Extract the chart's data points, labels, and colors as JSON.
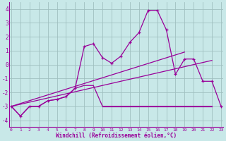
{
  "xlabel": "Windchill (Refroidissement éolien,°C)",
  "background_color": "#c8e8e8",
  "grid_color": "#a0c0c0",
  "line_color": "#990099",
  "x_values": [
    0,
    1,
    2,
    3,
    4,
    5,
    6,
    7,
    8,
    9,
    10,
    11,
    12,
    13,
    14,
    15,
    16,
    17,
    18,
    19,
    20,
    21,
    22,
    23
  ],
  "series1": [
    -3.0,
    -3.7,
    -3.0,
    -3.0,
    -2.6,
    -2.5,
    -2.3,
    -1.7,
    1.3,
    1.5,
    0.5,
    0.1,
    0.6,
    1.6,
    2.3,
    3.9,
    3.9,
    2.5,
    -0.7,
    0.4,
    0.4,
    -1.2,
    -1.2,
    -3.0
  ],
  "series2_x": [
    0,
    1,
    2,
    3,
    4,
    5,
    6,
    7,
    8,
    9,
    10,
    22
  ],
  "series2_y": [
    -3.0,
    -3.7,
    -3.0,
    -3.0,
    -2.6,
    -2.5,
    -2.3,
    -1.7,
    -1.5,
    -1.5,
    -3.0,
    -3.0
  ],
  "series3_x": [
    0,
    22
  ],
  "series3_y": [
    -3.0,
    0.3
  ],
  "series4_x": [
    0,
    19
  ],
  "series4_y": [
    -3.0,
    0.9
  ],
  "flat_line_x": [
    10,
    22
  ],
  "flat_line_y": [
    -3.0,
    -3.0
  ],
  "ylim": [
    -4.5,
    4.5
  ],
  "xlim": [
    -0.2,
    23.2
  ],
  "yticks": [
    -4,
    -3,
    -2,
    -1,
    0,
    1,
    2,
    3,
    4
  ]
}
